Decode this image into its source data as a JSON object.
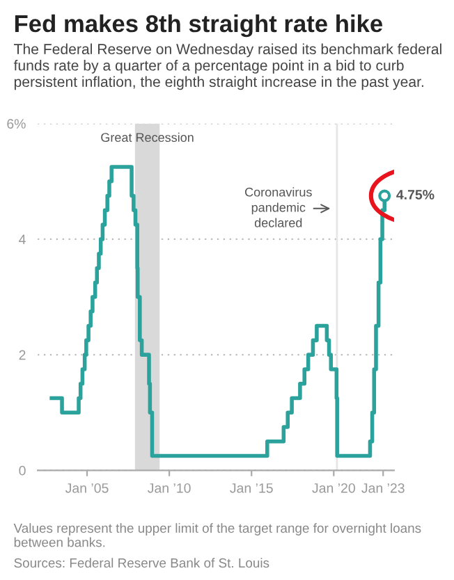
{
  "chart_data": {
    "type": "step",
    "title": "Fed makes 8th straight rate hike",
    "subtitle": "The Federal Reserve on Wednesday raised its benchmark federal funds rate by a quarter of a percentage point in a bid to curb persistent inflation, the eighth straight increase in the past year.",
    "x": [
      "2002-11-06",
      "2003-06-25",
      "2004-06-30",
      "2004-08-10",
      "2004-09-21",
      "2004-11-10",
      "2004-12-14",
      "2005-02-02",
      "2005-03-22",
      "2005-05-03",
      "2005-06-30",
      "2005-08-09",
      "2005-09-20",
      "2005-11-01",
      "2005-12-13",
      "2006-01-31",
      "2006-03-28",
      "2006-05-10",
      "2006-06-29",
      "2007-09-18",
      "2007-10-31",
      "2007-12-11",
      "2008-01-22",
      "2008-01-30",
      "2008-03-18",
      "2008-04-30",
      "2008-10-08",
      "2008-10-29",
      "2008-12-16",
      "2015-12-16",
      "2016-12-14",
      "2017-03-15",
      "2017-06-14",
      "2017-12-13",
      "2018-03-21",
      "2018-06-13",
      "2018-09-26",
      "2018-12-19",
      "2019-07-31",
      "2019-09-18",
      "2019-10-30",
      "2020-03-03",
      "2020-03-16",
      "2022-03-17",
      "2022-05-04",
      "2022-06-15",
      "2022-07-27",
      "2022-09-21",
      "2022-11-02",
      "2022-12-14",
      "2023-02-01"
    ],
    "series": [
      {
        "color": "#2ba39c",
        "values": [
          1.25,
          1.0,
          1.25,
          1.5,
          1.75,
          2.0,
          2.25,
          2.5,
          2.75,
          3.0,
          3.25,
          3.5,
          3.75,
          4.0,
          4.25,
          4.5,
          4.75,
          5.0,
          5.25,
          4.75,
          4.5,
          4.25,
          3.5,
          3.0,
          2.25,
          2.0,
          1.5,
          1.0,
          0.25,
          0.5,
          0.75,
          1.0,
          1.25,
          1.5,
          1.75,
          2.0,
          2.25,
          2.5,
          2.25,
          2.0,
          1.75,
          1.25,
          0.25,
          0.5,
          1.0,
          1.75,
          2.5,
          3.25,
          4.0,
          4.5,
          4.75
        ]
      }
    ],
    "xlim": [
      "2002-01-01",
      "2023-09-01"
    ],
    "xticks": [
      {
        "value": "2005-01-01",
        "label": "Jan ’05"
      },
      {
        "value": "2010-01-01",
        "label": "Jan ’10"
      },
      {
        "value": "2015-01-01",
        "label": "Jan ’15"
      },
      {
        "value": "2020-01-01",
        "label": "Jan ’20"
      },
      {
        "value": "2023-01-01",
        "label": "Jan ’23"
      }
    ],
    "ylim": [
      0,
      6
    ],
    "yticks": [
      0,
      2,
      4,
      {
        "value": 6,
        "label": "6%"
      }
    ],
    "grid": "y",
    "marker": "none",
    "line_style": "solid",
    "bands": [
      {
        "axis": "x",
        "from": "2007-12-01",
        "to": "2009-06-01",
        "label": "Great Recession",
        "color": "#d9d9d9"
      }
    ],
    "ref_lines": [
      {
        "axis": "x",
        "value": "2020-03-11",
        "label": "Coronavirus\npandemic\ndeclared",
        "color": "#e6e6e6"
      }
    ],
    "annotations": [
      {
        "text": "4.75%",
        "x": "2023-02-01",
        "y": 4.75
      },
      "Values represent the upper limit of the target range for overnight loans between banks.",
      "Sources: Federal Reserve Bank of St. Louis"
    ]
  }
}
